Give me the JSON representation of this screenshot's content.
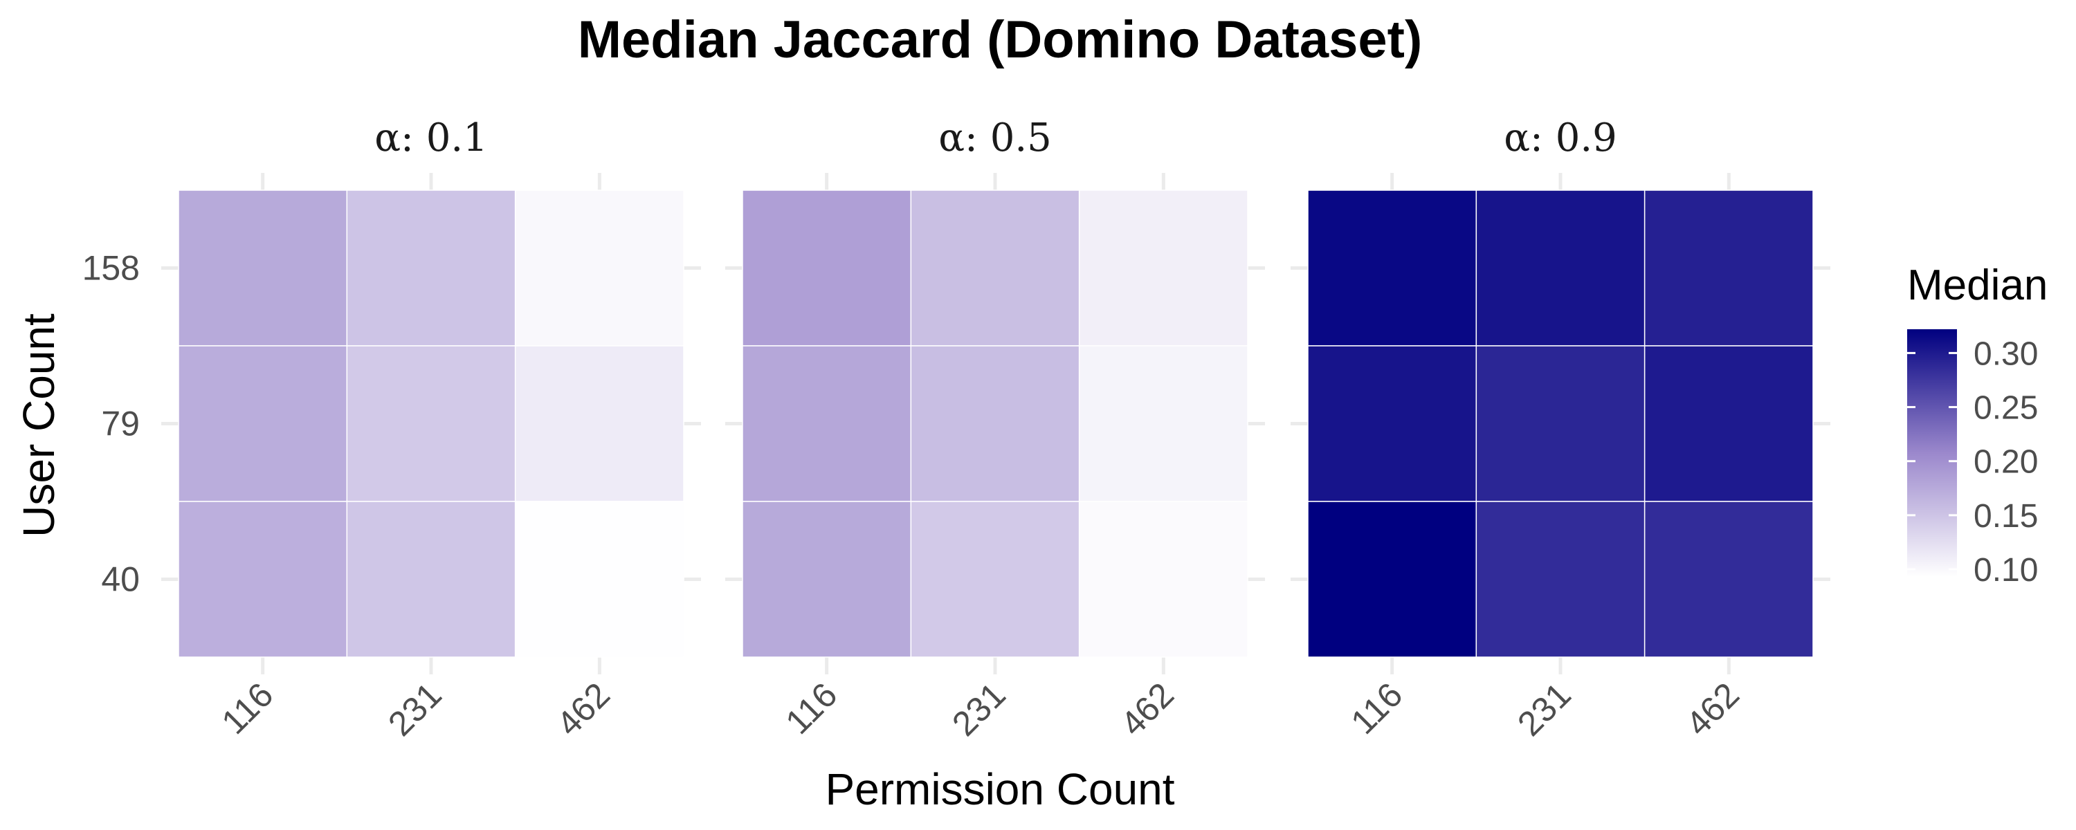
{
  "chart_data": {
    "type": "heatmap",
    "title": "Median Jaccard (Domino Dataset)",
    "xlabel": "Permission Count",
    "ylabel": "User Count",
    "x_categories": [
      "116",
      "231",
      "462"
    ],
    "y_categories": [
      "158",
      "79",
      "40"
    ],
    "facets": [
      {
        "label": "α: 0.1",
        "values": [
          [
            0.175,
            0.15,
            0.1
          ],
          [
            0.172,
            0.145,
            0.112
          ],
          [
            0.17,
            0.148,
            0.094
          ]
        ]
      },
      {
        "label": "α: 0.5",
        "values": [
          [
            0.185,
            0.155,
            0.108
          ],
          [
            0.178,
            0.156,
            0.104
          ],
          [
            0.175,
            0.145,
            0.098
          ]
        ]
      },
      {
        "label": "α: 0.9",
        "values": [
          [
            0.315,
            0.305,
            0.295
          ],
          [
            0.305,
            0.29,
            0.3
          ],
          [
            0.322,
            0.285,
            0.285
          ]
        ]
      }
    ],
    "legend": {
      "title": "Median",
      "ticks": [
        "0.30",
        "0.25",
        "0.20",
        "0.15",
        "0.10"
      ],
      "tick_values": [
        0.3,
        0.25,
        0.2,
        0.15,
        0.1
      ],
      "range": [
        0.093,
        0.322
      ],
      "low_color": "#ffffff",
      "high_color": "#000080",
      "placement": "right"
    },
    "grid": true
  }
}
